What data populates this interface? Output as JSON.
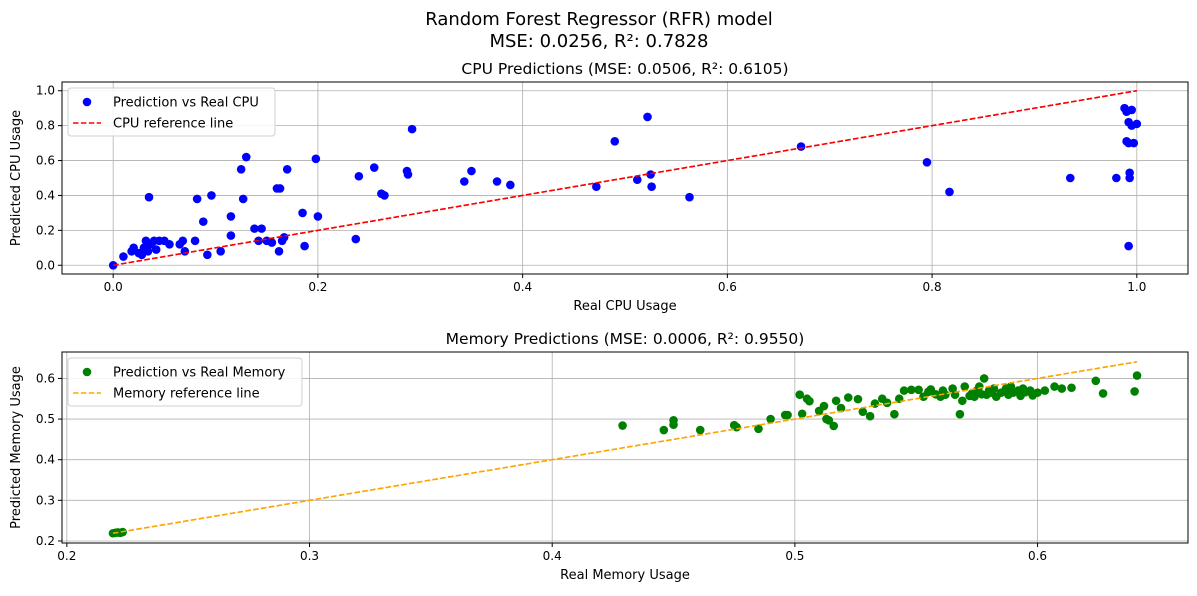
{
  "figure": {
    "suptitle_line1": "Random Forest Regressor (RFR) model",
    "suptitle_line2": "MSE: 0.0256, R²: 0.7828"
  },
  "chart_data": [
    {
      "type": "scatter",
      "title": "CPU Predictions (MSE: 0.0506, R²: 0.6105)",
      "xlabel": "Real CPU Usage",
      "ylabel": "Predicted CPU Usage",
      "xlim": [
        -0.05,
        1.05
      ],
      "ylim": [
        -0.05,
        1.05
      ],
      "xticks": [
        0.0,
        0.2,
        0.4,
        0.6,
        0.8,
        1.0
      ],
      "xtick_labels": [
        "0.0",
        "0.2",
        "0.4",
        "0.6",
        "0.8",
        "1.0"
      ],
      "yticks": [
        0.0,
        0.2,
        0.4,
        0.6,
        0.8,
        1.0
      ],
      "ytick_labels": [
        "0.0",
        "0.2",
        "0.4",
        "0.6",
        "0.8",
        "1.0"
      ],
      "grid": true,
      "legend_location": "upper left",
      "series": [
        {
          "name": "Prediction vs Real CPU",
          "kind": "scatter",
          "color": "#0000ff",
          "points": [
            [
              0.0,
              0.0
            ],
            [
              0.01,
              0.05
            ],
            [
              0.018,
              0.08
            ],
            [
              0.02,
              0.1
            ],
            [
              0.025,
              0.07
            ],
            [
              0.028,
              0.06
            ],
            [
              0.03,
              0.1
            ],
            [
              0.032,
              0.14
            ],
            [
              0.034,
              0.08
            ],
            [
              0.035,
              0.39
            ],
            [
              0.037,
              0.12
            ],
            [
              0.04,
              0.14
            ],
            [
              0.042,
              0.09
            ],
            [
              0.045,
              0.14
            ],
            [
              0.05,
              0.14
            ],
            [
              0.055,
              0.12
            ],
            [
              0.065,
              0.12
            ],
            [
              0.068,
              0.14
            ],
            [
              0.07,
              0.08
            ],
            [
              0.08,
              0.14
            ],
            [
              0.082,
              0.38
            ],
            [
              0.088,
              0.25
            ],
            [
              0.092,
              0.06
            ],
            [
              0.096,
              0.4
            ],
            [
              0.105,
              0.08
            ],
            [
              0.115,
              0.28
            ],
            [
              0.115,
              0.17
            ],
            [
              0.125,
              0.55
            ],
            [
              0.127,
              0.38
            ],
            [
              0.13,
              0.62
            ],
            [
              0.138,
              0.21
            ],
            [
              0.142,
              0.14
            ],
            [
              0.145,
              0.21
            ],
            [
              0.15,
              0.14
            ],
            [
              0.155,
              0.13
            ],
            [
              0.16,
              0.44
            ],
            [
              0.162,
              0.08
            ],
            [
              0.163,
              0.44
            ],
            [
              0.165,
              0.14
            ],
            [
              0.167,
              0.16
            ],
            [
              0.17,
              0.55
            ],
            [
              0.185,
              0.3
            ],
            [
              0.187,
              0.11
            ],
            [
              0.198,
              0.61
            ],
            [
              0.2,
              0.28
            ],
            [
              0.237,
              0.15
            ],
            [
              0.24,
              0.51
            ],
            [
              0.255,
              0.56
            ],
            [
              0.262,
              0.41
            ],
            [
              0.265,
              0.4
            ],
            [
              0.287,
              0.54
            ],
            [
              0.288,
              0.52
            ],
            [
              0.292,
              0.78
            ],
            [
              0.343,
              0.48
            ],
            [
              0.35,
              0.54
            ],
            [
              0.375,
              0.48
            ],
            [
              0.388,
              0.46
            ],
            [
              0.472,
              0.45
            ],
            [
              0.49,
              0.71
            ],
            [
              0.512,
              0.49
            ],
            [
              0.522,
              0.85
            ],
            [
              0.525,
              0.52
            ],
            [
              0.526,
              0.45
            ],
            [
              0.563,
              0.39
            ],
            [
              0.672,
              0.68
            ],
            [
              0.795,
              0.59
            ],
            [
              0.817,
              0.42
            ],
            [
              0.935,
              0.5
            ],
            [
              0.98,
              0.5
            ],
            [
              0.988,
              0.9
            ],
            [
              0.99,
              0.71
            ],
            [
              0.992,
              0.7
            ],
            [
              0.99,
              0.88
            ],
            [
              0.992,
              0.82
            ],
            [
              0.993,
              0.5
            ],
            [
              0.992,
              0.11
            ],
            [
              0.993,
              0.53
            ],
            [
              0.995,
              0.89
            ],
            [
              0.995,
              0.8
            ],
            [
              0.997,
              0.7
            ],
            [
              1.0,
              0.81
            ]
          ]
        },
        {
          "name": "CPU reference line",
          "kind": "line",
          "style": "dashed",
          "color": "#ff0000",
          "points": [
            [
              0.0,
              0.0
            ],
            [
              1.0,
              1.0
            ]
          ]
        }
      ]
    },
    {
      "type": "scatter",
      "title": "Memory Predictions (MSE: 0.0006, R²: 0.9550)",
      "xlabel": "Real Memory Usage",
      "ylabel": "Predicted Memory Usage",
      "xlim": [
        0.198,
        0.662
      ],
      "ylim": [
        0.195,
        0.665
      ],
      "xticks": [
        0.2,
        0.3,
        0.4,
        0.5,
        0.6
      ],
      "xtick_labels": [
        "0.2",
        "0.3",
        "0.4",
        "0.5",
        "0.6"
      ],
      "yticks": [
        0.2,
        0.3,
        0.4,
        0.5,
        0.6
      ],
      "ytick_labels": [
        "0.2",
        "0.3",
        "0.4",
        "0.5",
        "0.6"
      ],
      "grid": true,
      "legend_location": "upper left",
      "series": [
        {
          "name": "Prediction vs Real Memory",
          "kind": "scatter",
          "color": "#008000",
          "points": [
            [
              0.219,
              0.219
            ],
            [
              0.22,
              0.22
            ],
            [
              0.221,
              0.221
            ],
            [
              0.222,
              0.22
            ],
            [
              0.223,
              0.222
            ],
            [
              0.429,
              0.484
            ],
            [
              0.446,
              0.473
            ],
            [
              0.45,
              0.486
            ],
            [
              0.45,
              0.497
            ],
            [
              0.461,
              0.473
            ],
            [
              0.475,
              0.485
            ],
            [
              0.476,
              0.48
            ],
            [
              0.485,
              0.476
            ],
            [
              0.49,
              0.5
            ],
            [
              0.496,
              0.51
            ],
            [
              0.497,
              0.51
            ],
            [
              0.502,
              0.56
            ],
            [
              0.503,
              0.513
            ],
            [
              0.505,
              0.55
            ],
            [
              0.506,
              0.544
            ],
            [
              0.51,
              0.52
            ],
            [
              0.512,
              0.532
            ],
            [
              0.513,
              0.5
            ],
            [
              0.514,
              0.497
            ],
            [
              0.516,
              0.483
            ],
            [
              0.517,
              0.545
            ],
            [
              0.519,
              0.527
            ],
            [
              0.522,
              0.553
            ],
            [
              0.526,
              0.549
            ],
            [
              0.528,
              0.518
            ],
            [
              0.531,
              0.507
            ],
            [
              0.533,
              0.538
            ],
            [
              0.536,
              0.55
            ],
            [
              0.538,
              0.54
            ],
            [
              0.541,
              0.512
            ],
            [
              0.543,
              0.55
            ],
            [
              0.545,
              0.57
            ],
            [
              0.548,
              0.572
            ],
            [
              0.551,
              0.572
            ],
            [
              0.553,
              0.555
            ],
            [
              0.555,
              0.567
            ],
            [
              0.556,
              0.573
            ],
            [
              0.558,
              0.561
            ],
            [
              0.56,
              0.555
            ],
            [
              0.561,
              0.57
            ],
            [
              0.562,
              0.56
            ],
            [
              0.565,
              0.575
            ],
            [
              0.566,
              0.56
            ],
            [
              0.568,
              0.512
            ],
            [
              0.569,
              0.545
            ],
            [
              0.57,
              0.58
            ],
            [
              0.572,
              0.557
            ],
            [
              0.573,
              0.563
            ],
            [
              0.574,
              0.555
            ],
            [
              0.575,
              0.57
            ],
            [
              0.576,
              0.58
            ],
            [
              0.577,
              0.561
            ],
            [
              0.578,
              0.6
            ],
            [
              0.579,
              0.56
            ],
            [
              0.58,
              0.57
            ],
            [
              0.581,
              0.565
            ],
            [
              0.582,
              0.575
            ],
            [
              0.583,
              0.555
            ],
            [
              0.585,
              0.565
            ],
            [
              0.587,
              0.575
            ],
            [
              0.588,
              0.56
            ],
            [
              0.589,
              0.58
            ],
            [
              0.59,
              0.565
            ],
            [
              0.592,
              0.57
            ],
            [
              0.593,
              0.557
            ],
            [
              0.594,
              0.575
            ],
            [
              0.595,
              0.566
            ],
            [
              0.597,
              0.57
            ],
            [
              0.598,
              0.558
            ],
            [
              0.6,
              0.565
            ],
            [
              0.603,
              0.57
            ],
            [
              0.607,
              0.58
            ],
            [
              0.61,
              0.575
            ],
            [
              0.614,
              0.577
            ],
            [
              0.624,
              0.594
            ],
            [
              0.627,
              0.563
            ],
            [
              0.64,
              0.568
            ],
            [
              0.641,
              0.607
            ]
          ]
        },
        {
          "name": "Memory reference line",
          "kind": "line",
          "style": "dashed",
          "color": "#ffa500",
          "points": [
            [
              0.219,
              0.219
            ],
            [
              0.641,
              0.641
            ]
          ]
        }
      ]
    }
  ]
}
